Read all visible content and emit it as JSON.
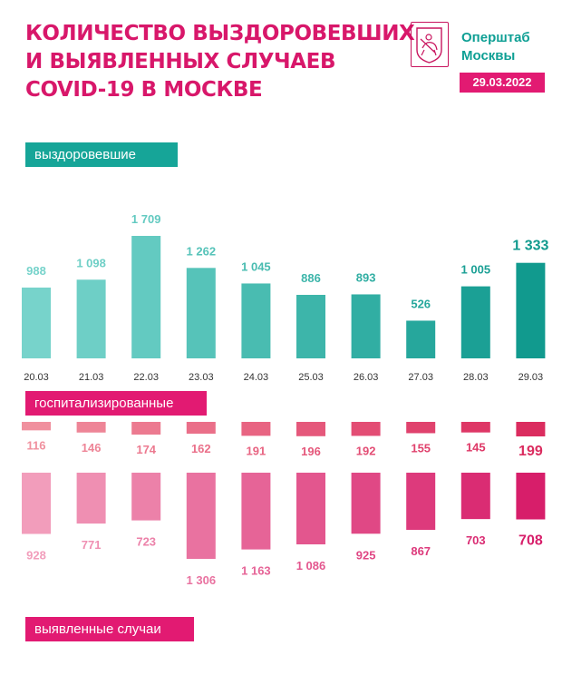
{
  "header": {
    "title_lines": [
      "КОЛИЧЕСТВО ВЫЗДОРОВЕВШИХ",
      "И ВЫЯВЛЕННЫХ СЛУЧАЕВ",
      "COVID-19 В МОСКВЕ"
    ],
    "org_lines": [
      "Оперштаб",
      "Москвы"
    ],
    "date": "29.03.2022"
  },
  "labels": {
    "recovered": "выздоровевшие",
    "hospitalized": "госпитализированные",
    "cases": "выявленные случаи"
  },
  "colors": {
    "title": "#d8176a",
    "accent_pink": "#e21a72",
    "accent_teal": "#16a598",
    "teal_bars": [
      "#77d3cb",
      "#6ecfc6",
      "#63cac1",
      "#56c3b9",
      "#49bcb1",
      "#3db5aa",
      "#31aea3",
      "#26a79c",
      "#1ba095",
      "#119a8e"
    ],
    "hosp_bars": [
      "#f0909e",
      "#ee8597",
      "#ec7a90",
      "#ea6f89",
      "#e86482",
      "#e5587b",
      "#e34d74",
      "#e0426d",
      "#de3766",
      "#db2c5f"
    ],
    "case_bars": [
      "#f29dbb",
      "#ef8fb2",
      "#ec81a9",
      "#e972a0",
      "#e66497",
      "#e3568e",
      "#e04885",
      "#dd3a7c",
      "#da2c73",
      "#d71e6a"
    ]
  },
  "chart_data": {
    "type": "bar",
    "categories": [
      "20.03",
      "21.03",
      "22.03",
      "23.03",
      "24.03",
      "25.03",
      "26.03",
      "27.03",
      "28.03",
      "29.03"
    ],
    "series": [
      {
        "name": "выздоровевшие",
        "values": [
          988,
          1098,
          1709,
          1262,
          1045,
          886,
          893,
          526,
          1005,
          1333
        ],
        "labels": [
          "988",
          "1 098",
          "1 709",
          "1 262",
          "1 045",
          "886",
          "893",
          "526",
          "1 005",
          "1 333"
        ]
      },
      {
        "name": "госпитализированные",
        "values": [
          116,
          146,
          174,
          162,
          191,
          196,
          192,
          155,
          145,
          199
        ],
        "labels": [
          "116",
          "146",
          "174",
          "162",
          "191",
          "196",
          "192",
          "155",
          "145",
          "199"
        ]
      },
      {
        "name": "выявленные случаи",
        "values": [
          928,
          771,
          723,
          1306,
          1163,
          1086,
          925,
          867,
          703,
          708
        ],
        "labels": [
          "928",
          "771",
          "723",
          "1 306",
          "1 163",
          "1 086",
          "925",
          "867",
          "703",
          "708"
        ]
      }
    ]
  }
}
